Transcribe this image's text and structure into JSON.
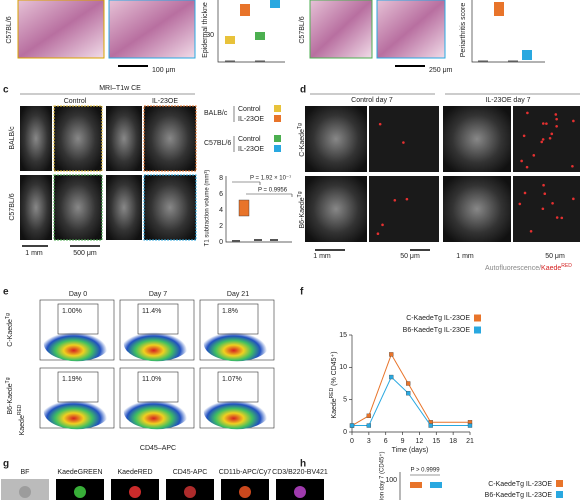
{
  "panels": {
    "a": {
      "strain": "C57BL/6",
      "scale": "100 μm",
      "ylabel": "Epidermal thickne",
      "ytick": "30"
    },
    "b": {
      "strain": "C57BL/6",
      "scale": "250 μm",
      "ylabel": "Periarthritis score"
    },
    "c": {
      "label": "c",
      "title": "MRI–T1w CE",
      "columns": [
        "Control",
        "IL-23OE"
      ],
      "rows": [
        "BALB/c",
        "C57BL/6"
      ],
      "scales": [
        "1 mm",
        "500 μm"
      ],
      "legend": [
        {
          "group": "BALB/c",
          "items": [
            "Control",
            "IL-23OE"
          ]
        },
        {
          "group": "C57BL/6",
          "items": [
            "Control",
            "IL-23OE"
          ]
        }
      ],
      "ylabel": "T1 subtraction volume (mm³)",
      "yticks": [
        "0",
        "2",
        "4",
        "6",
        "8"
      ],
      "pvalues": [
        "P = 1.92 × 10⁻⁷",
        "P = 0.9956"
      ]
    },
    "d": {
      "label": "d",
      "columns": [
        "Control day 7",
        "IL-23OE day 7"
      ],
      "rows": [
        {
          "text": "C-Kaede",
          "sup": "Tg"
        },
        {
          "text": "B6-Kaede",
          "sup": "Tg"
        }
      ],
      "scales": [
        "1 mm",
        "50 μm",
        "1 mm",
        "50 μm"
      ],
      "caption": {
        "a": "Autofluorescence/",
        "b": "Kaede",
        "sup": "RED"
      }
    },
    "e": {
      "label": "e",
      "columns": [
        "Day 0",
        "Day 7",
        "Day 21"
      ],
      "rows": [
        {
          "text": "C-Kaede",
          "sup": "Tg"
        },
        {
          "text": "B6-Kaede",
          "sup": "Tg"
        }
      ],
      "gates": [
        [
          "1.00%",
          "11.4%",
          "1.8%"
        ],
        [
          "1.19%",
          "11.0%",
          "1.07%"
        ]
      ],
      "xlabel": "CD45–APC",
      "ylabel": {
        "text": "Kaede",
        "sup": "RED"
      }
    },
    "f": {
      "label": "f",
      "ylabel": {
        "text": "Kaede",
        "sup": "RED",
        "rest": " (% CD45⁺)"
      }
    },
    "g": {
      "label": "g",
      "columns": [
        "BF",
        "KaedeGREEN",
        "KaedeRED",
        "CD45-APC",
        "CD11b-APC/Cy7",
        "CD3/B220-BV421"
      ]
    },
    "h": {
      "label": "h",
      "pvalue": "P > 0.9999",
      "ytick": "100",
      "ylabel": "ion day 7 (CD45⁺)",
      "legend": [
        "C-KaedeTg IL-23OE",
        "B6-KaedeTg IL-23OE"
      ]
    }
  },
  "chart_data": {
    "type": "line",
    "xlabel": "Time (days)",
    "x": [
      0,
      3,
      7,
      10,
      14,
      21
    ],
    "series": [
      {
        "name": "C-KaedeTg IL-23OE",
        "color": "#e8742a",
        "values": [
          1,
          2.5,
          12,
          7.5,
          1.5,
          1.5
        ]
      },
      {
        "name": "B6-KaedeTg IL-23OE",
        "color": "#29a8e0",
        "values": [
          1,
          1,
          8.5,
          6,
          1,
          1
        ]
      }
    ],
    "xlim": [
      0,
      21
    ],
    "xticks": [
      0,
      3,
      6,
      9,
      12,
      15,
      18,
      21
    ],
    "ylim": [
      0,
      15
    ],
    "yticks": [
      0,
      5,
      10,
      15
    ]
  }
}
